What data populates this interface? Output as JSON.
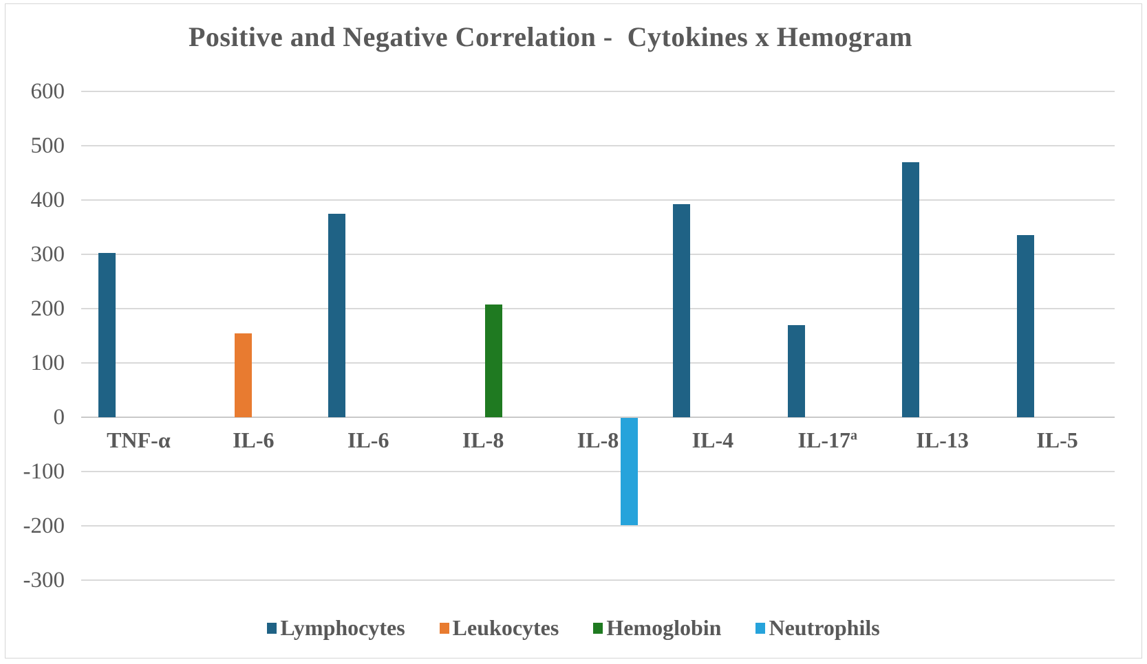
{
  "title": "Positive and Negative Correlation -  Cytokines x Hemogram",
  "style_colors": {
    "text": "#595959",
    "gridline": "#d9d9d9",
    "zero_line": "#c9c9c9",
    "background": "#ffffff",
    "border": "#d6d6d6"
  },
  "chart_data": {
    "type": "bar",
    "title": "Positive and Negative Correlation -  Cytokines x Hemogram",
    "xlabel": "",
    "ylabel": "",
    "ylim": [
      -300,
      600
    ],
    "grid": true,
    "y_ticks": [
      600,
      500,
      400,
      300,
      200,
      100,
      0,
      -100,
      -200,
      -300
    ],
    "categories": [
      {
        "label": "TNF-α"
      },
      {
        "label": "IL-6"
      },
      {
        "label": "IL-6"
      },
      {
        "label": "IL-8"
      },
      {
        "label": "IL-8"
      },
      {
        "label": "IL-4"
      },
      {
        "label": "IL-17",
        "sup": "a"
      },
      {
        "label": "IL-13"
      },
      {
        "label": "IL-5"
      }
    ],
    "series": [
      {
        "name": "Lymphocytes",
        "color": "#1f6285",
        "values": [
          303,
          null,
          375,
          null,
          null,
          392,
          170,
          470,
          335
        ]
      },
      {
        "name": "Leukocytes",
        "color": "#e87b30",
        "values": [
          null,
          155,
          null,
          null,
          null,
          null,
          null,
          null,
          null
        ]
      },
      {
        "name": "Hemoglobin",
        "color": "#1f7a21",
        "values": [
          null,
          null,
          null,
          208,
          null,
          null,
          null,
          null,
          null
        ]
      },
      {
        "name": "Neutrophils",
        "color": "#26a3db",
        "values": [
          null,
          null,
          null,
          null,
          -198,
          null,
          null,
          null,
          null
        ]
      }
    ],
    "legend": {
      "position": "bottom",
      "entries": [
        "Lymphocytes",
        "Leukocytes",
        "Hemoglobin",
        "Neutrophils"
      ]
    }
  }
}
